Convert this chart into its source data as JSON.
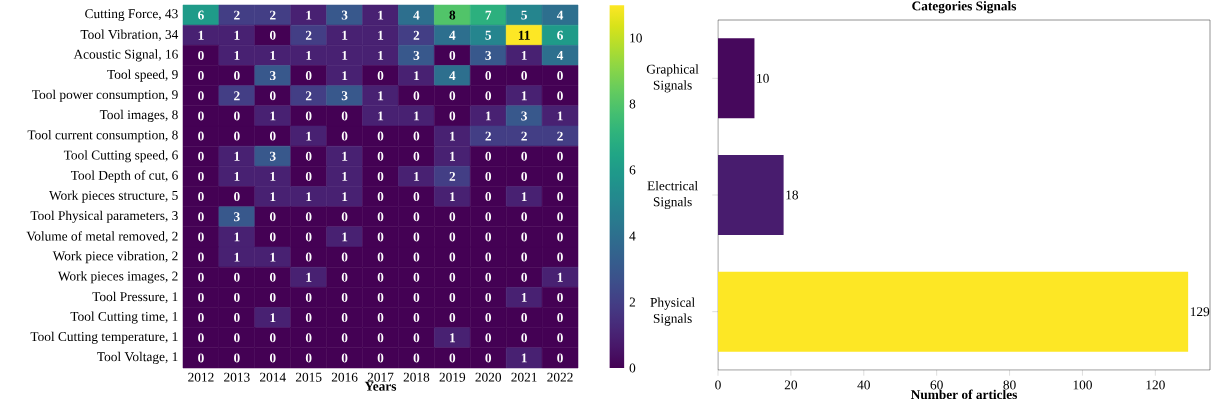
{
  "chart_data": [
    {
      "type": "heatmap",
      "xlabel": "Years",
      "data_labels": true,
      "categories": [
        "2012",
        "2013",
        "2014",
        "2015",
        "2016",
        "2017",
        "2018",
        "2019",
        "2020",
        "2021",
        "2022"
      ],
      "y_categories": [
        "Cutting Force, 43",
        "Tool Vibration, 34",
        "Acoustic Signal, 16",
        "Tool speed, 9",
        "Tool power consumption, 9",
        "Tool images, 8",
        "Tool current consumption, 8",
        "Tool Cutting speed, 6",
        "Tool Depth of cut, 6",
        "Work pieces structure, 5",
        "Tool Physical parameters, 3",
        "Volume of metal removed, 2",
        "Work piece vibration, 2",
        "Work pieces images, 2",
        "Tool Pressure, 1",
        "Tool Cutting time, 1",
        "Tool Cutting temperature, 1",
        "Tool Voltage, 1"
      ],
      "cells": [
        [
          6,
          2,
          2,
          1,
          3,
          1,
          4,
          8,
          7,
          5,
          4
        ],
        [
          1,
          1,
          0,
          2,
          1,
          1,
          2,
          4,
          5,
          11,
          6
        ],
        [
          0,
          1,
          1,
          1,
          1,
          1,
          3,
          0,
          3,
          1,
          4
        ],
        [
          0,
          0,
          3,
          0,
          1,
          0,
          1,
          4,
          0,
          0,
          0
        ],
        [
          0,
          2,
          0,
          2,
          3,
          1,
          0,
          0,
          0,
          1,
          0
        ],
        [
          0,
          0,
          1,
          0,
          0,
          1,
          1,
          0,
          1,
          3,
          1
        ],
        [
          0,
          0,
          0,
          1,
          0,
          0,
          0,
          1,
          2,
          2,
          2
        ],
        [
          0,
          1,
          3,
          0,
          1,
          0,
          0,
          1,
          0,
          0,
          0
        ],
        [
          0,
          1,
          1,
          0,
          1,
          0,
          1,
          2,
          0,
          0,
          0
        ],
        [
          0,
          0,
          1,
          1,
          1,
          0,
          0,
          1,
          0,
          1,
          0
        ],
        [
          0,
          3,
          0,
          0,
          0,
          0,
          0,
          0,
          0,
          0,
          0
        ],
        [
          0,
          1,
          0,
          0,
          1,
          0,
          0,
          0,
          0,
          0,
          0
        ],
        [
          0,
          1,
          1,
          0,
          0,
          0,
          0,
          0,
          0,
          0,
          0
        ],
        [
          0,
          0,
          0,
          1,
          0,
          0,
          0,
          0,
          0,
          0,
          1
        ],
        [
          0,
          0,
          0,
          0,
          0,
          0,
          0,
          0,
          0,
          1,
          0
        ],
        [
          0,
          0,
          1,
          0,
          0,
          0,
          0,
          0,
          0,
          0,
          0
        ],
        [
          0,
          0,
          0,
          0,
          0,
          0,
          0,
          1,
          0,
          0,
          0
        ],
        [
          0,
          0,
          0,
          0,
          0,
          0,
          0,
          0,
          0,
          1,
          0
        ]
      ],
      "clim": [
        0,
        11
      ],
      "cticks": [
        0,
        2,
        4,
        6,
        8,
        10
      ]
    },
    {
      "type": "bar",
      "orientation": "horizontal",
      "title": "Categories Signals",
      "xlabel": "Number of articles",
      "data_labels": true,
      "categories": [
        "Graphical Signals",
        "Electrical Signals",
        "Physical Signals"
      ],
      "values": [
        10,
        18,
        129
      ],
      "colors": [
        "#46085c",
        "#481c6e",
        "#fde725"
      ],
      "xlim": [
        0,
        135
      ],
      "xticks": [
        0,
        20,
        40,
        60,
        80,
        100,
        120
      ]
    }
  ]
}
